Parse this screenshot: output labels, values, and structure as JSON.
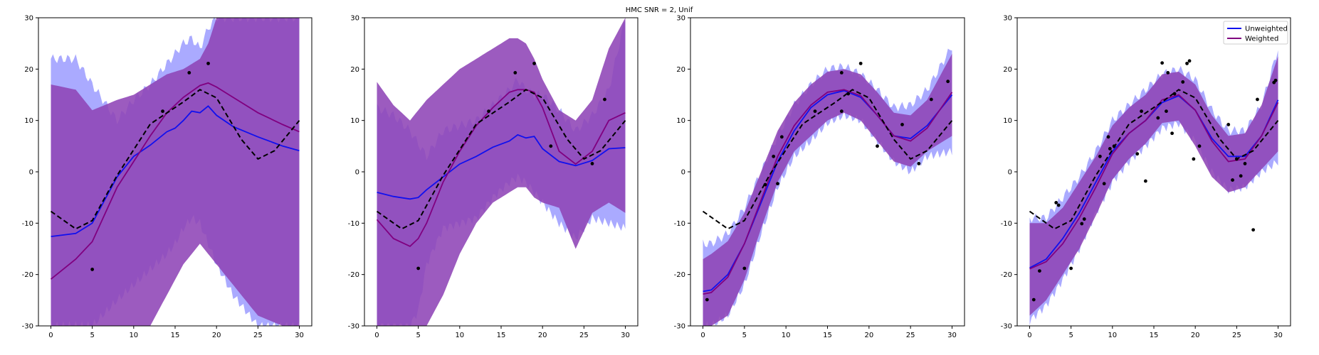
{
  "figure": {
    "suptitle": "HMC SNR = 2, Unif"
  },
  "colors": {
    "unweighted": "#1010ee",
    "unweighted_band": "#aaaaff",
    "weighted": "#800080",
    "weighted_band": "#8e44b6",
    "true_function": "#000000",
    "observations": "#000000"
  },
  "legend": {
    "placement": "upper right of last panel",
    "entries": [
      {
        "label": "Unweighted",
        "series": "unweighted"
      },
      {
        "label": "Weighted",
        "series": "weighted"
      }
    ]
  },
  "chart_data": [
    {
      "type": "line",
      "xlim": [
        -1.5,
        31.5
      ],
      "ylim": [
        -30,
        30
      ],
      "xticks": [
        0,
        5,
        10,
        15,
        20,
        25,
        30
      ],
      "yticks": [
        -30,
        -20,
        -10,
        0,
        10,
        20,
        30
      ],
      "observations": [
        [
          5,
          -19
        ],
        [
          13.5,
          11.8
        ],
        [
          16.7,
          19.3
        ],
        [
          19,
          21.1
        ]
      ],
      "true_function": {
        "x": [
          0,
          3,
          5,
          8,
          12,
          16,
          18,
          20,
          23,
          25,
          27,
          30
        ],
        "y": [
          -7.7,
          -11.1,
          -9.5,
          -0.7,
          9.3,
          13.6,
          16.0,
          14.4,
          6.3,
          2.5,
          4.1,
          10.0
        ]
      },
      "series": [
        {
          "name": "Unweighted",
          "x": [
            0,
            3,
            5,
            8,
            10,
            12,
            14,
            15,
            16,
            17,
            18,
            19,
            20,
            22,
            25,
            28,
            30
          ],
          "mean": [
            -12.6,
            -12.0,
            -10.0,
            -1.0,
            3.0,
            5.2,
            7.8,
            8.5,
            10.0,
            11.8,
            11.5,
            12.8,
            11.0,
            8.8,
            6.8,
            5.0,
            4.1
          ],
          "lower": [
            -30,
            -30,
            -30,
            -25.0,
            -22.0,
            -19.0,
            -16.0,
            -14.0,
            -11.0,
            -9.0,
            -10.0,
            -14.0,
            -18.0,
            -24.0,
            -30,
            -30,
            -30
          ],
          "upper": [
            22.0,
            22.0,
            17.0,
            10.0,
            14.0,
            17.0,
            21.0,
            23.0,
            25.0,
            26.0,
            24.0,
            28.0,
            30,
            30,
            30,
            30,
            30
          ]
        },
        {
          "name": "Weighted",
          "x": [
            0,
            3,
            5,
            8,
            10,
            12,
            14,
            16,
            18,
            19,
            20,
            22,
            25,
            28,
            30
          ],
          "mean": [
            -20.9,
            -17.0,
            -13.6,
            -3.0,
            2.0,
            7.0,
            11.5,
            14.5,
            16.8,
            17.3,
            16.5,
            14.5,
            11.5,
            9.2,
            7.8
          ],
          "lower": [
            -30,
            -30,
            -30,
            -30,
            -30,
            -30,
            -24.0,
            -18.0,
            -14.0,
            -16.0,
            -18.0,
            -22.0,
            -28.0,
            -30,
            -30
          ],
          "upper": [
            17.0,
            16.0,
            12.0,
            14.0,
            15.0,
            17.0,
            19.0,
            20.0,
            22.0,
            25.0,
            30,
            30,
            30,
            30,
            30
          ]
        }
      ]
    },
    {
      "type": "line",
      "xlim": [
        -1.5,
        31.5
      ],
      "ylim": [
        -30,
        30
      ],
      "xticks": [
        0,
        5,
        10,
        15,
        20,
        25,
        30
      ],
      "yticks": [
        -30,
        -20,
        -10,
        0,
        10,
        20,
        30
      ],
      "observations": [
        [
          5,
          -18.8
        ],
        [
          13.5,
          11.8
        ],
        [
          16.7,
          19.3
        ],
        [
          19,
          21.1
        ],
        [
          21,
          5.0
        ],
        [
          26,
          1.6
        ],
        [
          27.5,
          14.1
        ]
      ],
      "true_function": {
        "x": [
          0,
          3,
          5,
          8,
          12,
          16,
          18,
          20,
          23,
          25,
          27,
          30
        ],
        "y": [
          -7.7,
          -11.1,
          -9.5,
          -0.7,
          9.3,
          13.6,
          16.0,
          14.4,
          6.3,
          2.5,
          4.1,
          10.0
        ]
      },
      "series": [
        {
          "name": "Unweighted",
          "x": [
            0,
            2,
            4,
            5,
            6,
            8,
            10,
            12,
            14,
            16,
            17,
            18,
            19,
            20,
            22,
            24,
            26,
            28,
            30
          ],
          "mean": [
            -4.0,
            -4.8,
            -5.3,
            -5.0,
            -3.5,
            -1.0,
            1.5,
            3.0,
            4.8,
            6.0,
            7.2,
            6.6,
            6.9,
            4.5,
            2.0,
            1.2,
            2.2,
            4.5,
            4.7
          ],
          "lower": [
            -30,
            -30,
            -30,
            -27.0,
            -18.0,
            -11.0,
            -10.0,
            -9.0,
            -5.0,
            -2.0,
            -1.0,
            -2.0,
            -4.0,
            -6.0,
            -10.0,
            -13.0,
            -9.0,
            -10.0,
            -11.0
          ],
          "upper": [
            12.5,
            11.0,
            8.0,
            5.5,
            3.0,
            8.0,
            9.0,
            10.0,
            13.0,
            16.0,
            18.0,
            16.0,
            15.0,
            15.0,
            12.0,
            8.0,
            11.0,
            16.0,
            30
          ]
        },
        {
          "name": "Weighted",
          "x": [
            0,
            2,
            4,
            5,
            6,
            8,
            10,
            12,
            14,
            16,
            17,
            18,
            19,
            20,
            22,
            24,
            26,
            28,
            30
          ],
          "mean": [
            -9.3,
            -13.0,
            -14.5,
            -13.0,
            -10.0,
            -2.0,
            4.0,
            9.0,
            12.5,
            15.5,
            16.0,
            16.0,
            15.5,
            12.5,
            4.0,
            1.5,
            4.0,
            10.0,
            11.5
          ],
          "lower": [
            -30,
            -30,
            -30,
            -30,
            -30,
            -24.0,
            -16.0,
            -10.0,
            -6.0,
            -4.0,
            -3.0,
            -3.0,
            -5.0,
            -6.0,
            -7.0,
            -15.0,
            -8.0,
            -6.0,
            -8.0
          ],
          "upper": [
            17.5,
            13.0,
            10.0,
            12.0,
            14.0,
            17.0,
            20.0,
            22.0,
            24.0,
            26.0,
            26.0,
            25.0,
            22.0,
            18.0,
            12.0,
            10.0,
            14.0,
            24.0,
            30
          ]
        }
      ]
    },
    {
      "type": "line",
      "xlim": [
        -1.5,
        31.5
      ],
      "ylim": [
        -30,
        30
      ],
      "xticks": [
        0,
        5,
        10,
        15,
        20,
        25,
        30
      ],
      "yticks": [
        -30,
        -20,
        -10,
        0,
        10,
        20,
        30
      ],
      "observations": [
        [
          0.5,
          -24.9
        ],
        [
          5,
          -18.8
        ],
        [
          7.5,
          -2.5
        ],
        [
          8.5,
          3
        ],
        [
          9,
          -2.3
        ],
        [
          9.5,
          6.8
        ],
        [
          13.5,
          11.8
        ],
        [
          16.7,
          11.8
        ],
        [
          16.7,
          19.3
        ],
        [
          17.5,
          15.2
        ],
        [
          19,
          21.1
        ],
        [
          21,
          5.0
        ],
        [
          24,
          9.2
        ],
        [
          26,
          1.6
        ],
        [
          27.5,
          14.1
        ],
        [
          29.5,
          17.6
        ]
      ],
      "true_function": {
        "x": [
          0,
          3,
          5,
          8,
          12,
          16,
          18,
          20,
          23,
          25,
          27,
          30
        ],
        "y": [
          -7.7,
          -11.1,
          -9.5,
          -0.7,
          9.3,
          13.6,
          16.0,
          14.4,
          6.3,
          2.5,
          4.1,
          10.0
        ]
      },
      "series": [
        {
          "name": "Unweighted",
          "x": [
            0,
            1,
            3,
            5,
            7,
            9,
            11,
            13,
            15,
            17,
            19,
            21,
            23,
            25,
            27,
            30
          ],
          "mean": [
            -23.3,
            -23.0,
            -20.0,
            -14.0,
            -6.0,
            2.0,
            8.0,
            12.5,
            15.0,
            15.8,
            14.5,
            11.0,
            7.0,
            6.5,
            9.0,
            15.0
          ],
          "lower": [
            -30,
            -30,
            -28.0,
            -22.0,
            -12.0,
            -3.0,
            3.0,
            6.0,
            9.5,
            11.0,
            10.0,
            6.0,
            2.0,
            0.0,
            3.0,
            4.0
          ],
          "upper": [
            -14.0,
            -14.0,
            -12.0,
            -7.0,
            0.0,
            7.0,
            13.0,
            17.0,
            20.0,
            20.5,
            19.0,
            16.0,
            12.5,
            13.0,
            16.0,
            24.5
          ]
        },
        {
          "name": "Weighted",
          "x": [
            0,
            1,
            3,
            5,
            7,
            9,
            11,
            13,
            15,
            17,
            19,
            21,
            23,
            25,
            27,
            30
          ],
          "mean": [
            -23.8,
            -23.5,
            -20.5,
            -14.0,
            -5.5,
            3.0,
            9.0,
            13.0,
            15.5,
            16.0,
            14.8,
            11.0,
            7.0,
            6.0,
            8.5,
            15.5
          ],
          "lower": [
            -30,
            -30,
            -28.0,
            -21.0,
            -11.0,
            -2.0,
            4.0,
            7.0,
            10.0,
            11.5,
            10.0,
            6.0,
            2.0,
            1.0,
            4.0,
            7.0
          ],
          "upper": [
            -17.0,
            -16.0,
            -13.5,
            -8.0,
            0.0,
            8.0,
            13.5,
            17.0,
            19.5,
            20.0,
            19.0,
            15.5,
            11.5,
            11.0,
            14.0,
            23.0
          ]
        }
      ]
    },
    {
      "type": "line",
      "xlim": [
        -1.5,
        31.5
      ],
      "ylim": [
        -30,
        30
      ],
      "xticks": [
        0,
        5,
        10,
        15,
        20,
        25,
        30
      ],
      "yticks": [
        -30,
        -20,
        -10,
        0,
        10,
        20,
        30
      ],
      "observations": [
        [
          0.5,
          -24.9
        ],
        [
          1.2,
          -19.3
        ],
        [
          3.2,
          -6
        ],
        [
          3.5,
          -6.5
        ],
        [
          5,
          -18.8
        ],
        [
          6.3,
          -10.1
        ],
        [
          6.6,
          -9.2
        ],
        [
          8.5,
          3
        ],
        [
          9,
          -2.3
        ],
        [
          9.5,
          6.8
        ],
        [
          9.7,
          4.5
        ],
        [
          10.2,
          5
        ],
        [
          13,
          3.5
        ],
        [
          13.5,
          11.8
        ],
        [
          14,
          -1.8
        ],
        [
          15.5,
          10.5
        ],
        [
          16,
          21.2
        ],
        [
          16.5,
          11.8
        ],
        [
          16.7,
          19.3
        ],
        [
          17.5,
          15.2
        ],
        [
          19,
          21.1
        ],
        [
          19.3,
          21.6
        ],
        [
          18.5,
          17.5
        ],
        [
          17.2,
          7.5
        ],
        [
          19.8,
          2.5
        ],
        [
          20.5,
          5
        ],
        [
          24,
          9.2
        ],
        [
          24.5,
          -1.6
        ],
        [
          25,
          2.5
        ],
        [
          25.5,
          -0.8
        ],
        [
          26,
          1.6
        ],
        [
          27,
          -11.3
        ],
        [
          27.5,
          14.1
        ],
        [
          29.5,
          17.4
        ],
        [
          29.7,
          17.8
        ]
      ],
      "true_function": {
        "x": [
          0,
          3,
          5,
          8,
          12,
          16,
          18,
          20,
          23,
          25,
          27,
          30
        ],
        "y": [
          -7.7,
          -11.1,
          -9.5,
          -0.7,
          9.3,
          13.6,
          16.0,
          14.4,
          6.3,
          2.5,
          4.1,
          10.0
        ]
      },
      "series": [
        {
          "name": "Unweighted",
          "x": [
            0,
            2,
            4,
            6,
            8,
            10,
            12,
            14,
            16,
            18,
            20,
            22,
            24,
            26,
            28,
            30
          ],
          "mean": [
            -18.7,
            -17.0,
            -13.0,
            -8.0,
            -2.0,
            4.0,
            7.5,
            10.0,
            13.5,
            14.8,
            12.0,
            6.5,
            3.0,
            3.0,
            7.0,
            14.0
          ],
          "lower": [
            -29.0,
            -26.0,
            -21.0,
            -15.0,
            -8.0,
            -2.0,
            2.0,
            5.0,
            8.5,
            9.5,
            6.0,
            0.0,
            -3.5,
            -3.0,
            0.0,
            2.0
          ],
          "upper": [
            -9.0,
            -9.0,
            -5.0,
            -1.0,
            4.0,
            10.0,
            13.0,
            16.0,
            19.0,
            20.0,
            18.0,
            12.0,
            8.0,
            8.0,
            13.0,
            24.0
          ]
        },
        {
          "name": "Weighted",
          "x": [
            0,
            2,
            4,
            6,
            8,
            10,
            12,
            14,
            16,
            18,
            20,
            22,
            24,
            26,
            28,
            30
          ],
          "mean": [
            -18.9,
            -17.5,
            -14.0,
            -9.0,
            -3.0,
            3.5,
            7.5,
            10.0,
            14.0,
            15.0,
            12.0,
            6.0,
            2.0,
            2.5,
            7.0,
            13.5
          ],
          "lower": [
            -28.0,
            -25.0,
            -20.0,
            -15.0,
            -8.5,
            -1.5,
            2.5,
            5.5,
            9.5,
            10.0,
            5.0,
            -1.0,
            -4.0,
            -3.0,
            0.5,
            4.0
          ],
          "upper": [
            -10.0,
            -10.0,
            -7.0,
            -2.0,
            3.0,
            9.0,
            12.5,
            15.0,
            19.0,
            19.5,
            17.0,
            11.0,
            7.0,
            7.5,
            13.0,
            22.5
          ]
        }
      ]
    }
  ]
}
